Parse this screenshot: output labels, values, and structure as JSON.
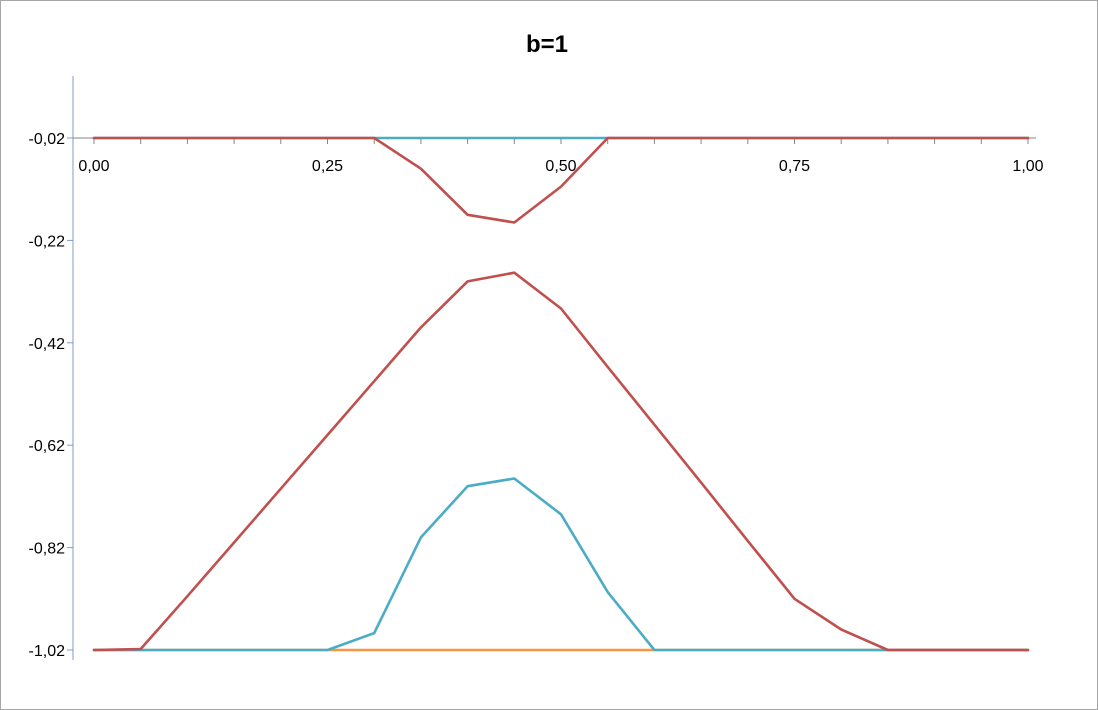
{
  "chart_data": {
    "type": "line",
    "title": "b=1",
    "xlabel": "",
    "ylabel": "",
    "xlim": [
      0,
      1
    ],
    "ylim": [
      -1.02,
      0.11
    ],
    "x_axis_crosses_y": -0.02,
    "x_ticks": [
      0,
      0.25,
      0.5,
      0.75,
      1
    ],
    "x_tick_labels": [
      "0,00",
      "0,25",
      "0,50",
      "0,75",
      "1,00"
    ],
    "y_ticks": [
      -0.02,
      -0.22,
      -0.42,
      -0.62,
      -0.82,
      -1.02
    ],
    "y_tick_labels": [
      "-0,02",
      "-0,22",
      "-0,42",
      "-0,62",
      "-0,82",
      "-1,02"
    ],
    "grid": false,
    "legend": "none",
    "x": [
      0,
      0.05,
      0.1,
      0.15,
      0.2,
      0.25,
      0.3,
      0.35,
      0.4,
      0.45,
      0.5,
      0.55,
      0.6,
      0.65,
      0.7,
      0.75,
      0.8,
      0.85,
      0.9,
      0.95,
      1
    ],
    "series": [
      {
        "color": "#4bacc6",
        "values": [
          -0.02,
          -0.02,
          -0.02,
          -0.02,
          -0.02,
          -0.02,
          -0.02,
          -0.02,
          -0.02,
          -0.02,
          -0.02,
          -0.02,
          -0.02,
          -0.02,
          -0.02,
          -0.02,
          -0.02,
          -0.02,
          -0.02,
          -0.02,
          -0.02
        ]
      },
      {
        "color": "#c0504d",
        "values": [
          -0.02,
          -0.02,
          -0.02,
          -0.02,
          -0.02,
          -0.02,
          -0.02,
          -0.08,
          -0.17,
          -0.185,
          -0.115,
          -0.02,
          -0.02,
          -0.02,
          -0.02,
          -0.02,
          -0.02,
          -0.02,
          -0.02,
          -0.02,
          -0.02
        ]
      },
      {
        "color": "#f79646",
        "values": [
          -1.02,
          -1.02,
          -1.02,
          -1.02,
          -1.02,
          -1.02,
          -1.02,
          -1.02,
          -1.02,
          -1.02,
          -1.02,
          -1.02,
          -1.02,
          -1.02,
          -1.02,
          -1.02,
          -1.02,
          -1.02,
          -1.02,
          -1.02,
          -1.02
        ]
      },
      {
        "color": "#4bacc6",
        "values": [
          -1.02,
          -1.02,
          -1.02,
          -1.02,
          -1.02,
          -1.02,
          -0.987,
          -0.8,
          -0.7,
          -0.685,
          -0.755,
          -0.907,
          -1.02,
          -1.02,
          -1.02,
          -1.02,
          -1.02,
          -1.02,
          -1.02,
          -1.02,
          -1.02
        ]
      },
      {
        "color": "#c0504d",
        "values": [
          -1.02,
          -1.018,
          -0.915,
          -0.81,
          -0.705,
          -0.6,
          -0.495,
          -0.39,
          -0.3,
          -0.283,
          -0.353,
          -0.467,
          -0.58,
          -0.693,
          -0.807,
          -0.92,
          -0.98,
          -1.02,
          -1.02,
          -1.02,
          -1.02
        ]
      }
    ]
  }
}
